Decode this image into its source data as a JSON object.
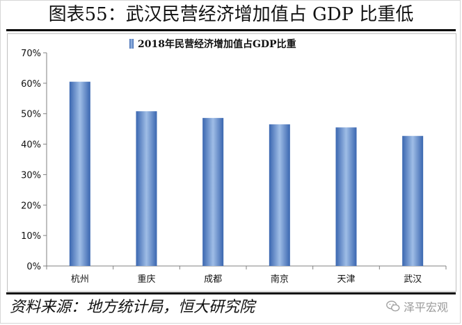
{
  "title": "图表55：武汉民营经济增加值占 GDP 比重低",
  "source": "资料来源：地方统计局，恒大研究院",
  "watermark": {
    "icon": "wechat-icon",
    "text": "泽平宏观"
  },
  "chart_data": {
    "type": "bar",
    "legend": {
      "label": "2018年民营经济增加值占GDP比重",
      "position": "top"
    },
    "categories": [
      "杭州",
      "重庆",
      "成都",
      "南京",
      "天津",
      "武汉"
    ],
    "series": [
      {
        "name": "2018年民营经济增加值占GDP比重",
        "values": [
          60.5,
          50.8,
          48.6,
          46.5,
          45.5,
          42.7
        ]
      }
    ],
    "ylim": [
      0,
      70
    ],
    "yticks": [
      "0%",
      "10%",
      "20%",
      "30%",
      "40%",
      "50%",
      "60%",
      "70%"
    ],
    "ytick_values": [
      0,
      10,
      20,
      30,
      40,
      50,
      60,
      70
    ],
    "grid": false,
    "bar_color_light": "#9fbde6",
    "bar_color_dark": "#3a66b0"
  }
}
